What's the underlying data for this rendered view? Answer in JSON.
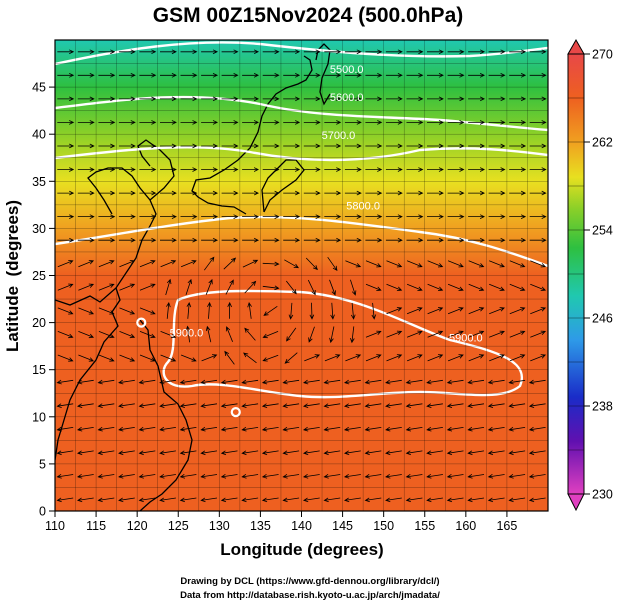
{
  "chart_data": {
    "type": "heatmap",
    "title": "GSM 00Z15Nov2024 (500.0hPa)",
    "xlabel": "Longitude (degrees)",
    "ylabel": "Latitude  (degrees)",
    "xlim": [
      110,
      170
    ],
    "ylim": [
      0,
      50
    ],
    "x_ticks": [
      "110",
      "115",
      "120",
      "125",
      "130",
      "135",
      "140",
      "145",
      "150",
      "155",
      "160",
      "165"
    ],
    "y_ticks": [
      "0",
      "5",
      "10",
      "15",
      "20",
      "25",
      "30",
      "35",
      "40",
      "45"
    ],
    "grid": true,
    "colorbar": {
      "position": "right",
      "range": [
        230,
        270
      ],
      "ticks": [
        "230",
        "238",
        "246",
        "254",
        "262",
        "270"
      ]
    },
    "temperature_by_latitude": {
      "lat": [
        0,
        5,
        10,
        15,
        20,
        25,
        30,
        35,
        40,
        45,
        50
      ],
      "value": [
        266,
        266,
        266,
        265,
        265,
        264,
        261,
        257,
        254,
        251,
        247
      ]
    },
    "contours": [
      {
        "label": "5500.0",
        "lon": 145.5,
        "lat": 46.5
      },
      {
        "label": "5600.0",
        "lon": 145.5,
        "lat": 43.5
      },
      {
        "label": "5700.0",
        "lon": 144.5,
        "lat": 39.5
      },
      {
        "label": "5800.0",
        "lon": 147.5,
        "lat": 32.0
      },
      {
        "label": "5900.0",
        "lon": 160.0,
        "lat": 18.0
      },
      {
        "label": "5900.0",
        "lon": 126.0,
        "lat": 18.5
      }
    ],
    "highs": [
      {
        "lon": 120.5,
        "lat": 20.0
      },
      {
        "lon": 132.0,
        "lat": 10.5
      }
    ]
  },
  "credits": {
    "line1": "Drawing by DCL (https://www.gfd-dennou.org/library/dcl/)",
    "line2": "Data from http://database.rish.kyoto-u.ac.jp/arch/jmadata/"
  }
}
